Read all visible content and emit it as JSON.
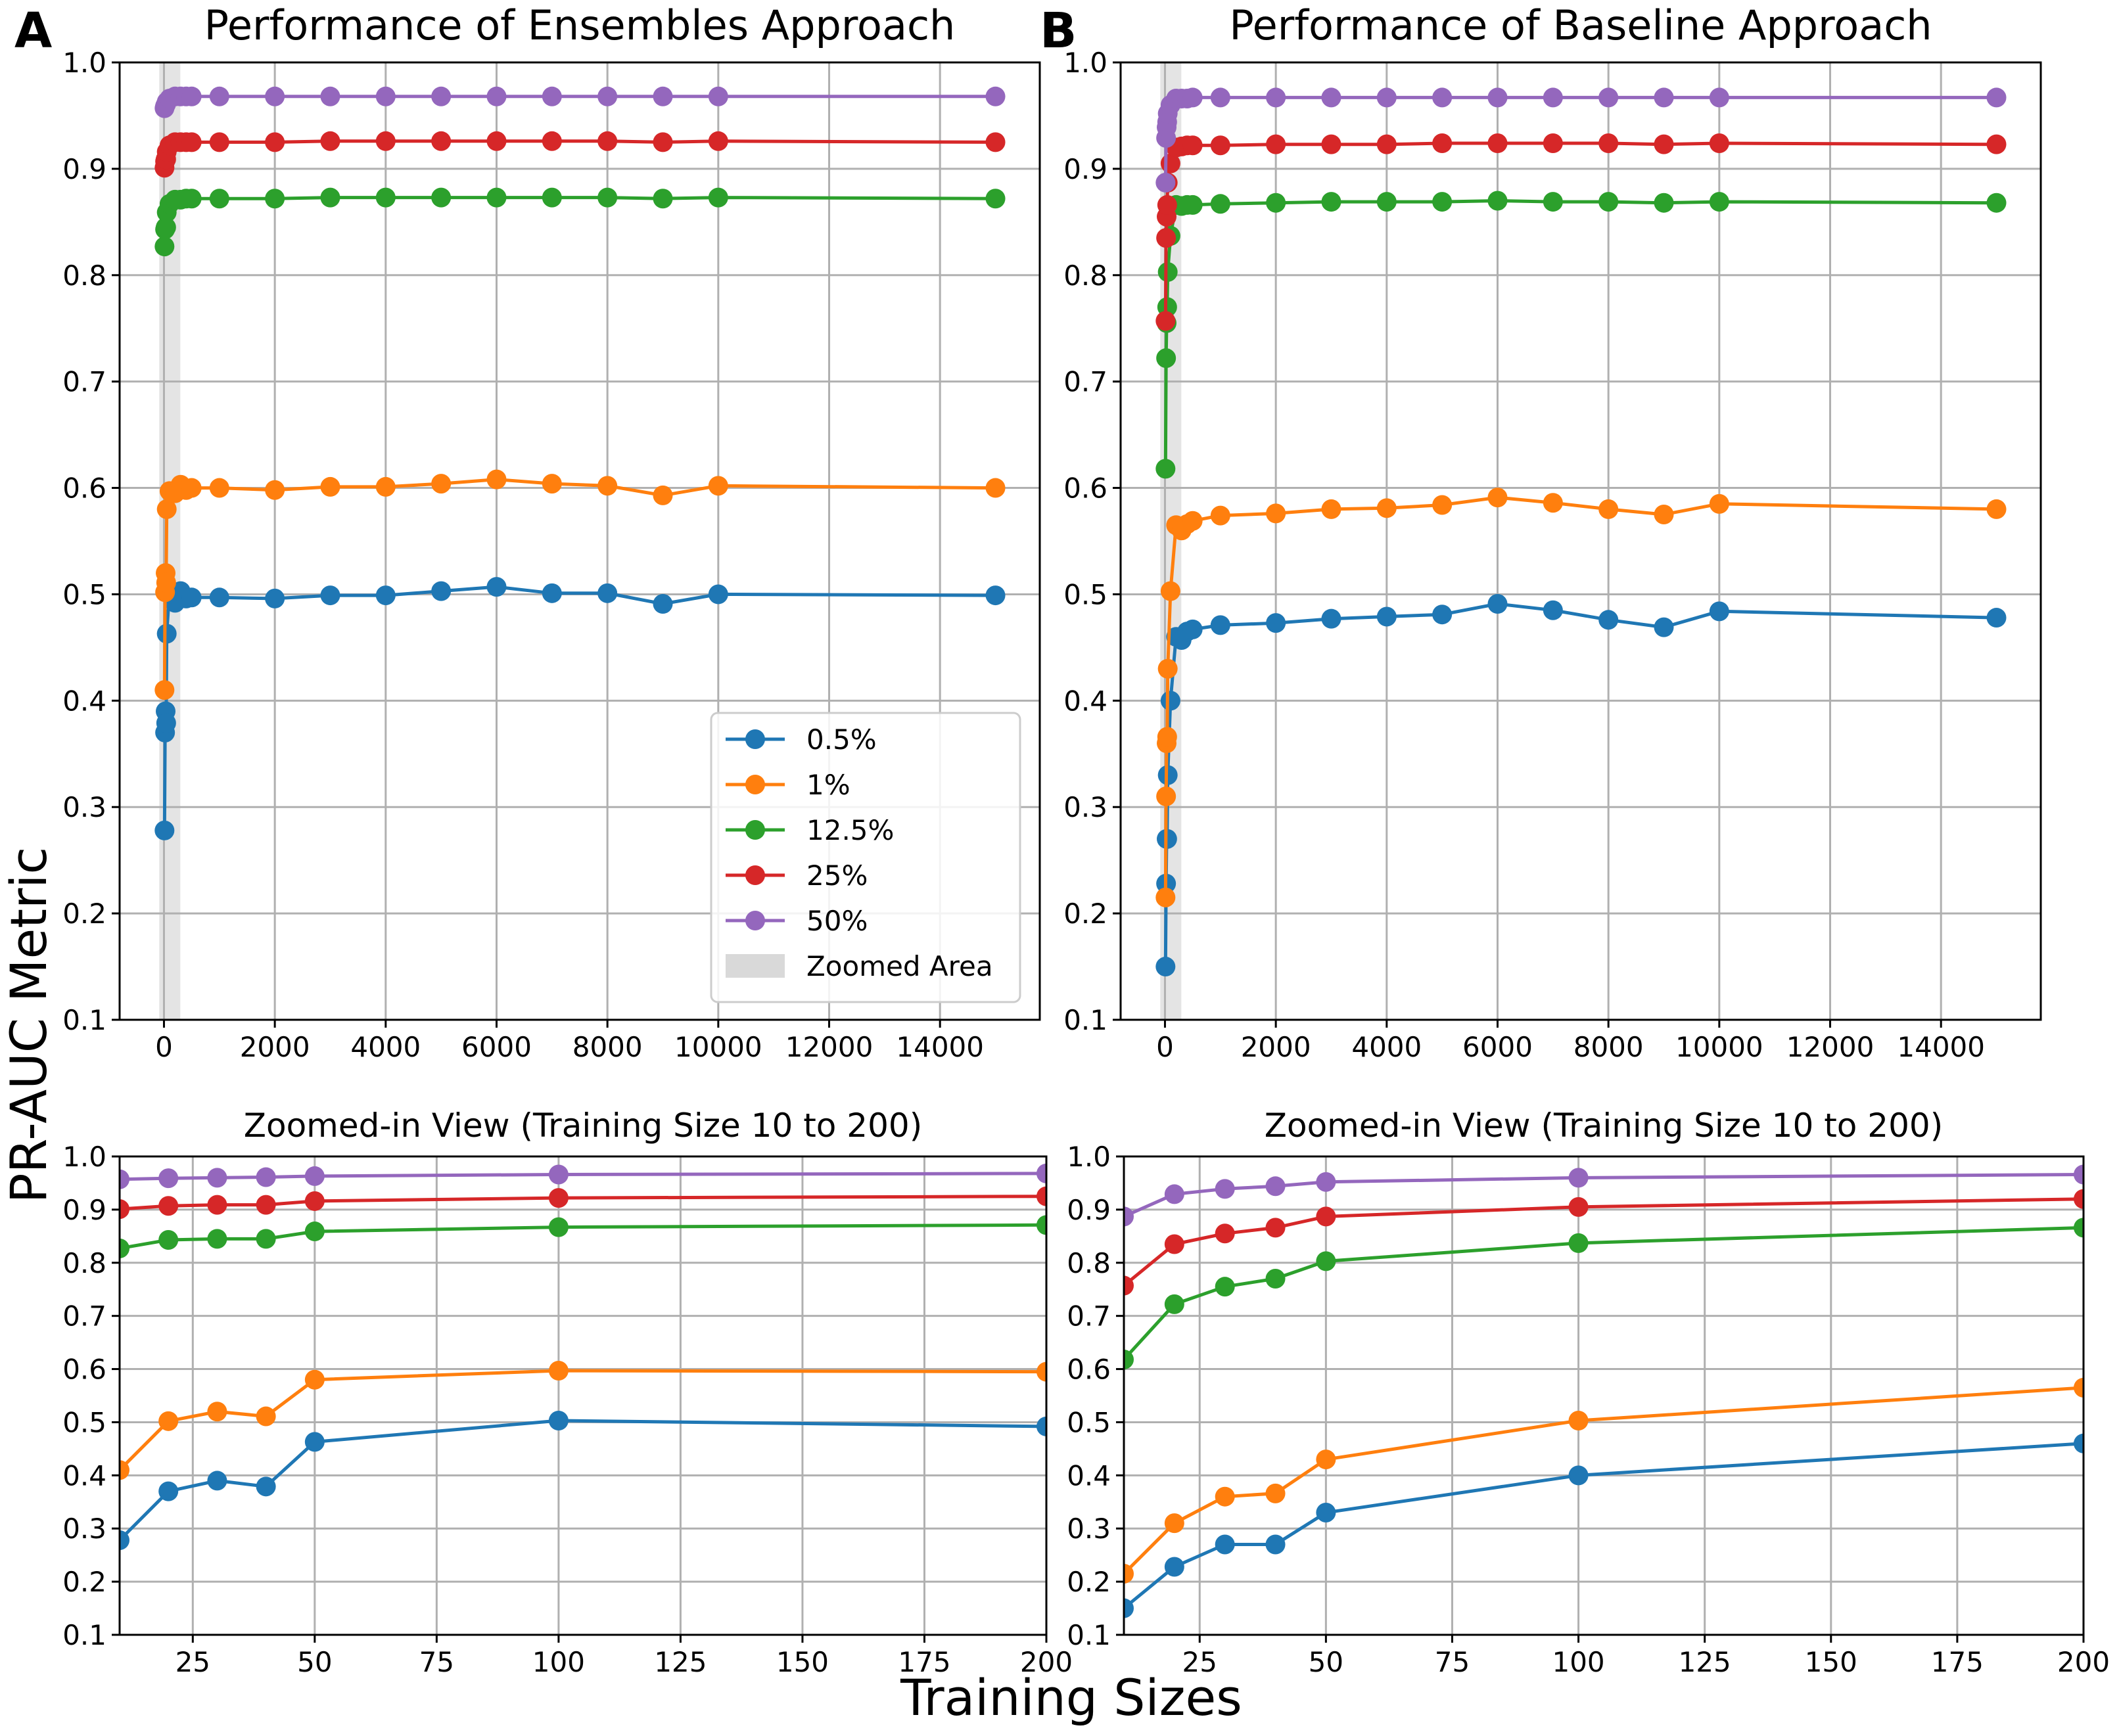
{
  "figure": {
    "ylabel": "PR-AUC Metric",
    "xlabel": "Training Sizes"
  },
  "colors": {
    "0.5%": "#1f77b4",
    "1%": "#ff7f0e",
    "12.5%": "#2ca02c",
    "25%": "#d62728",
    "50%": "#9467bd",
    "zoom": "#d9d9d9"
  },
  "legend": {
    "entries": [
      "0.5%",
      "1%",
      "12.5%",
      "25%",
      "50%"
    ],
    "zoom_label": "Zoomed Area",
    "placement": "lower-right of panel A"
  },
  "chart_data": [
    {
      "id": "A",
      "letter": "A",
      "type": "line",
      "title": "Performance of Ensembles Approach",
      "x": [
        10,
        20,
        30,
        40,
        50,
        100,
        200,
        300,
        400,
        500,
        1000,
        2000,
        3000,
        4000,
        5000,
        6000,
        7000,
        8000,
        9000,
        10000,
        15000
      ],
      "xlim": [
        -800,
        15800
      ],
      "ylim": [
        0.1,
        1.0
      ],
      "xticks": [
        0,
        2000,
        4000,
        6000,
        8000,
        10000,
        12000,
        14000
      ],
      "yticks": [
        0.1,
        0.2,
        0.3,
        0.4,
        0.5,
        0.6,
        0.7,
        0.8,
        0.9,
        1.0
      ],
      "zoom_band": [
        10,
        200
      ],
      "series": [
        {
          "name": "0.5%",
          "values": [
            0.278,
            0.37,
            0.39,
            0.379,
            0.463,
            0.503,
            0.492,
            0.503,
            0.496,
            0.497,
            0.497,
            0.496,
            0.499,
            0.499,
            0.503,
            0.507,
            0.501,
            0.501,
            0.491,
            0.5,
            0.499
          ]
        },
        {
          "name": "1%",
          "values": [
            0.41,
            0.502,
            0.52,
            0.511,
            0.58,
            0.597,
            0.595,
            0.603,
            0.598,
            0.6,
            0.6,
            0.598,
            0.601,
            0.601,
            0.604,
            0.608,
            0.604,
            0.602,
            0.593,
            0.602,
            0.6
          ]
        },
        {
          "name": "12.5%",
          "values": [
            0.827,
            0.843,
            0.845,
            0.845,
            0.859,
            0.867,
            0.871,
            0.871,
            0.872,
            0.872,
            0.872,
            0.872,
            0.873,
            0.873,
            0.873,
            0.873,
            0.873,
            0.873,
            0.872,
            0.873,
            0.872
          ]
        },
        {
          "name": "25%",
          "values": [
            0.901,
            0.907,
            0.909,
            0.909,
            0.916,
            0.922,
            0.925,
            0.925,
            0.925,
            0.925,
            0.925,
            0.925,
            0.926,
            0.926,
            0.926,
            0.926,
            0.926,
            0.926,
            0.925,
            0.926,
            0.925
          ]
        },
        {
          "name": "50%",
          "values": [
            0.957,
            0.959,
            0.96,
            0.961,
            0.963,
            0.966,
            0.968,
            0.968,
            0.968,
            0.968,
            0.968,
            0.968,
            0.968,
            0.968,
            0.968,
            0.968,
            0.968,
            0.968,
            0.968,
            0.968,
            0.968
          ]
        }
      ]
    },
    {
      "id": "B",
      "letter": "B",
      "type": "line",
      "title": "Performance of Baseline Approach",
      "x": [
        10,
        20,
        30,
        40,
        50,
        100,
        200,
        300,
        400,
        500,
        1000,
        2000,
        3000,
        4000,
        5000,
        6000,
        7000,
        8000,
        9000,
        10000,
        15000
      ],
      "xlim": [
        -800,
        15800
      ],
      "ylim": [
        0.1,
        1.0
      ],
      "xticks": [
        0,
        2000,
        4000,
        6000,
        8000,
        10000,
        12000,
        14000
      ],
      "yticks": [
        0.1,
        0.2,
        0.3,
        0.4,
        0.5,
        0.6,
        0.7,
        0.8,
        0.9,
        1.0
      ],
      "zoom_band": [
        10,
        200
      ],
      "series": [
        {
          "name": "0.5%",
          "values": [
            0.15,
            0.228,
            0.27,
            0.27,
            0.33,
            0.4,
            0.46,
            0.457,
            0.465,
            0.467,
            0.471,
            0.473,
            0.477,
            0.479,
            0.481,
            0.491,
            0.485,
            0.476,
            0.469,
            0.484,
            0.478
          ]
        },
        {
          "name": "1%",
          "values": [
            0.215,
            0.31,
            0.36,
            0.366,
            0.43,
            0.503,
            0.565,
            0.56,
            0.566,
            0.569,
            0.574,
            0.576,
            0.58,
            0.581,
            0.584,
            0.591,
            0.586,
            0.58,
            0.575,
            0.585,
            0.58
          ]
        },
        {
          "name": "12.5%",
          "values": [
            0.618,
            0.722,
            0.755,
            0.77,
            0.803,
            0.837,
            0.866,
            0.865,
            0.866,
            0.866,
            0.867,
            0.868,
            0.869,
            0.869,
            0.869,
            0.87,
            0.869,
            0.869,
            0.868,
            0.869,
            0.868
          ]
        },
        {
          "name": "25%",
          "values": [
            0.757,
            0.835,
            0.855,
            0.866,
            0.887,
            0.905,
            0.92,
            0.921,
            0.922,
            0.922,
            0.922,
            0.923,
            0.923,
            0.923,
            0.924,
            0.924,
            0.924,
            0.924,
            0.923,
            0.924,
            0.923
          ]
        },
        {
          "name": "50%",
          "values": [
            0.887,
            0.929,
            0.939,
            0.944,
            0.952,
            0.96,
            0.966,
            0.966,
            0.966,
            0.967,
            0.967,
            0.967,
            0.967,
            0.967,
            0.967,
            0.967,
            0.967,
            0.967,
            0.967,
            0.967,
            0.967
          ]
        }
      ]
    },
    {
      "id": "C",
      "type": "line",
      "title": "Zoomed-in View (Training Size 10 to 200)",
      "x": [
        10,
        20,
        30,
        40,
        50,
        100,
        200
      ],
      "xlim": [
        10,
        200
      ],
      "ylim": [
        0.1,
        1.0
      ],
      "xticks": [
        25,
        50,
        75,
        100,
        125,
        150,
        175,
        200
      ],
      "yticks": [
        0.1,
        0.2,
        0.3,
        0.4,
        0.5,
        0.6,
        0.7,
        0.8,
        0.9,
        1.0
      ],
      "series": [
        {
          "name": "0.5%",
          "values": [
            0.278,
            0.37,
            0.39,
            0.379,
            0.463,
            0.503,
            0.492
          ]
        },
        {
          "name": "1%",
          "values": [
            0.41,
            0.502,
            0.52,
            0.511,
            0.58,
            0.597,
            0.595
          ]
        },
        {
          "name": "12.5%",
          "values": [
            0.827,
            0.843,
            0.845,
            0.845,
            0.859,
            0.867,
            0.871
          ]
        },
        {
          "name": "25%",
          "values": [
            0.901,
            0.907,
            0.909,
            0.909,
            0.916,
            0.922,
            0.925
          ]
        },
        {
          "name": "50%",
          "values": [
            0.957,
            0.959,
            0.96,
            0.961,
            0.963,
            0.966,
            0.968
          ]
        }
      ]
    },
    {
      "id": "D",
      "type": "line",
      "title": "Zoomed-in View (Training Size 10 to 200)",
      "x": [
        10,
        20,
        30,
        40,
        50,
        100,
        200
      ],
      "xlim": [
        10,
        200
      ],
      "ylim": [
        0.1,
        1.0
      ],
      "xticks": [
        25,
        50,
        75,
        100,
        125,
        150,
        175,
        200
      ],
      "yticks": [
        0.1,
        0.2,
        0.3,
        0.4,
        0.5,
        0.6,
        0.7,
        0.8,
        0.9,
        1.0
      ],
      "series": [
        {
          "name": "0.5%",
          "values": [
            0.15,
            0.228,
            0.27,
            0.27,
            0.33,
            0.4,
            0.46
          ]
        },
        {
          "name": "1%",
          "values": [
            0.215,
            0.31,
            0.36,
            0.366,
            0.43,
            0.503,
            0.565
          ]
        },
        {
          "name": "12.5%",
          "values": [
            0.618,
            0.722,
            0.755,
            0.77,
            0.803,
            0.837,
            0.866
          ]
        },
        {
          "name": "25%",
          "values": [
            0.757,
            0.835,
            0.855,
            0.866,
            0.887,
            0.905,
            0.92
          ]
        },
        {
          "name": "50%",
          "values": [
            0.887,
            0.929,
            0.939,
            0.944,
            0.952,
            0.96,
            0.966
          ]
        }
      ]
    }
  ]
}
